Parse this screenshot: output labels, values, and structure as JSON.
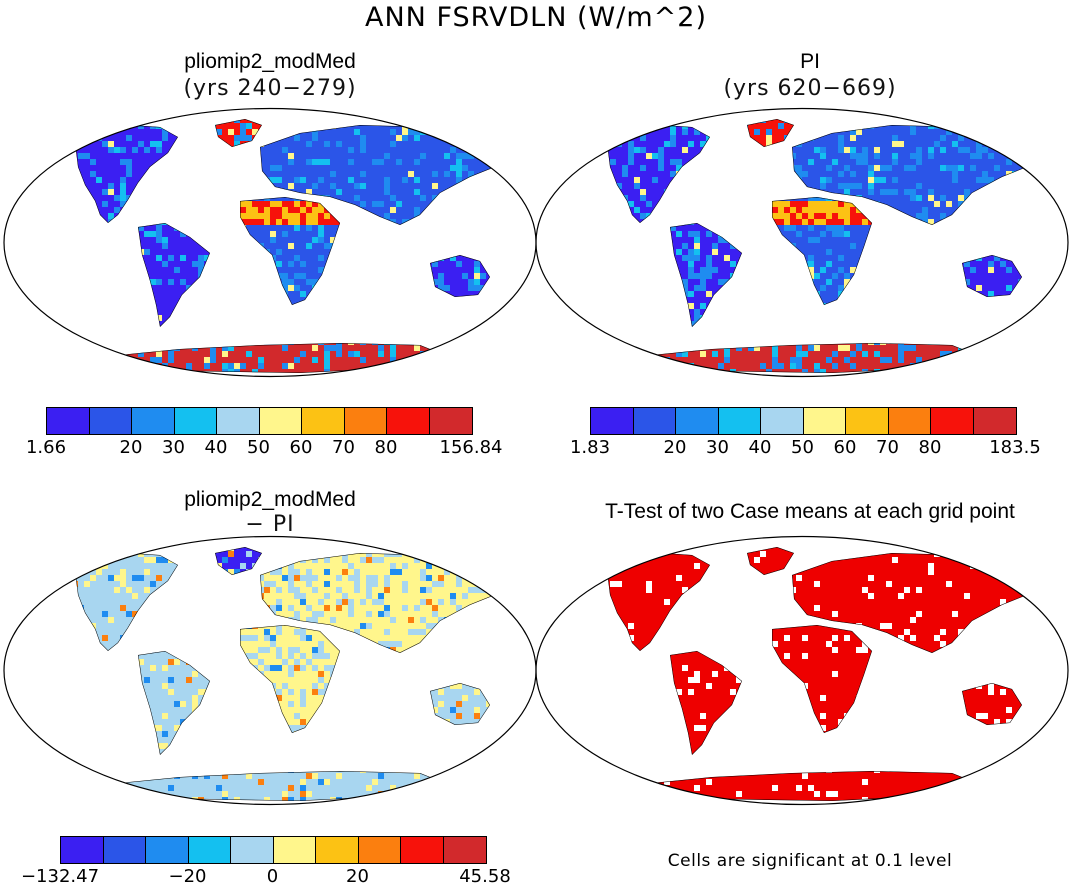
{
  "figure": {
    "title": "ANN FSRVDLN (W/m^2)"
  },
  "panels": {
    "top_left": {
      "title": "pliomip2_modMed",
      "subtitle": "(yrs 240−279)",
      "colorbar_ticks": [
        "1.66",
        "20",
        "30",
        "40",
        "50",
        "60",
        "70",
        "80",
        "156.84"
      ]
    },
    "top_right": {
      "title": "PI",
      "subtitle": "(yrs 620−669)",
      "colorbar_ticks": [
        "1.83",
        "20",
        "30",
        "40",
        "50",
        "60",
        "70",
        "80",
        "183.5"
      ]
    },
    "bottom_left": {
      "title": "pliomip2_modMed",
      "subtitle": "− PI",
      "colorbar_ticks": [
        "−132.47",
        "−20",
        "0",
        "20",
        "45.58"
      ]
    },
    "bottom_right": {
      "title": "T-Test of two Case means at each grid point",
      "note": "Cells are significant at 0.1 level"
    }
  },
  "colors": {
    "abs_scale": [
      "#3b1ff2",
      "#2b55e8",
      "#1f8cf0",
      "#14c0f0",
      "#a8d6f0",
      "#fff68c",
      "#fcc214",
      "#fb7f0f",
      "#f7120b",
      "#d2292c"
    ],
    "diff_scale": [
      "#3b1ff2",
      "#2b55e8",
      "#1f8cf0",
      "#14c0f0",
      "#a8d6f0",
      "#fff68c",
      "#fcc214",
      "#fb7f0f",
      "#f7120b",
      "#d2292c"
    ],
    "significance": "#ee0000"
  }
}
